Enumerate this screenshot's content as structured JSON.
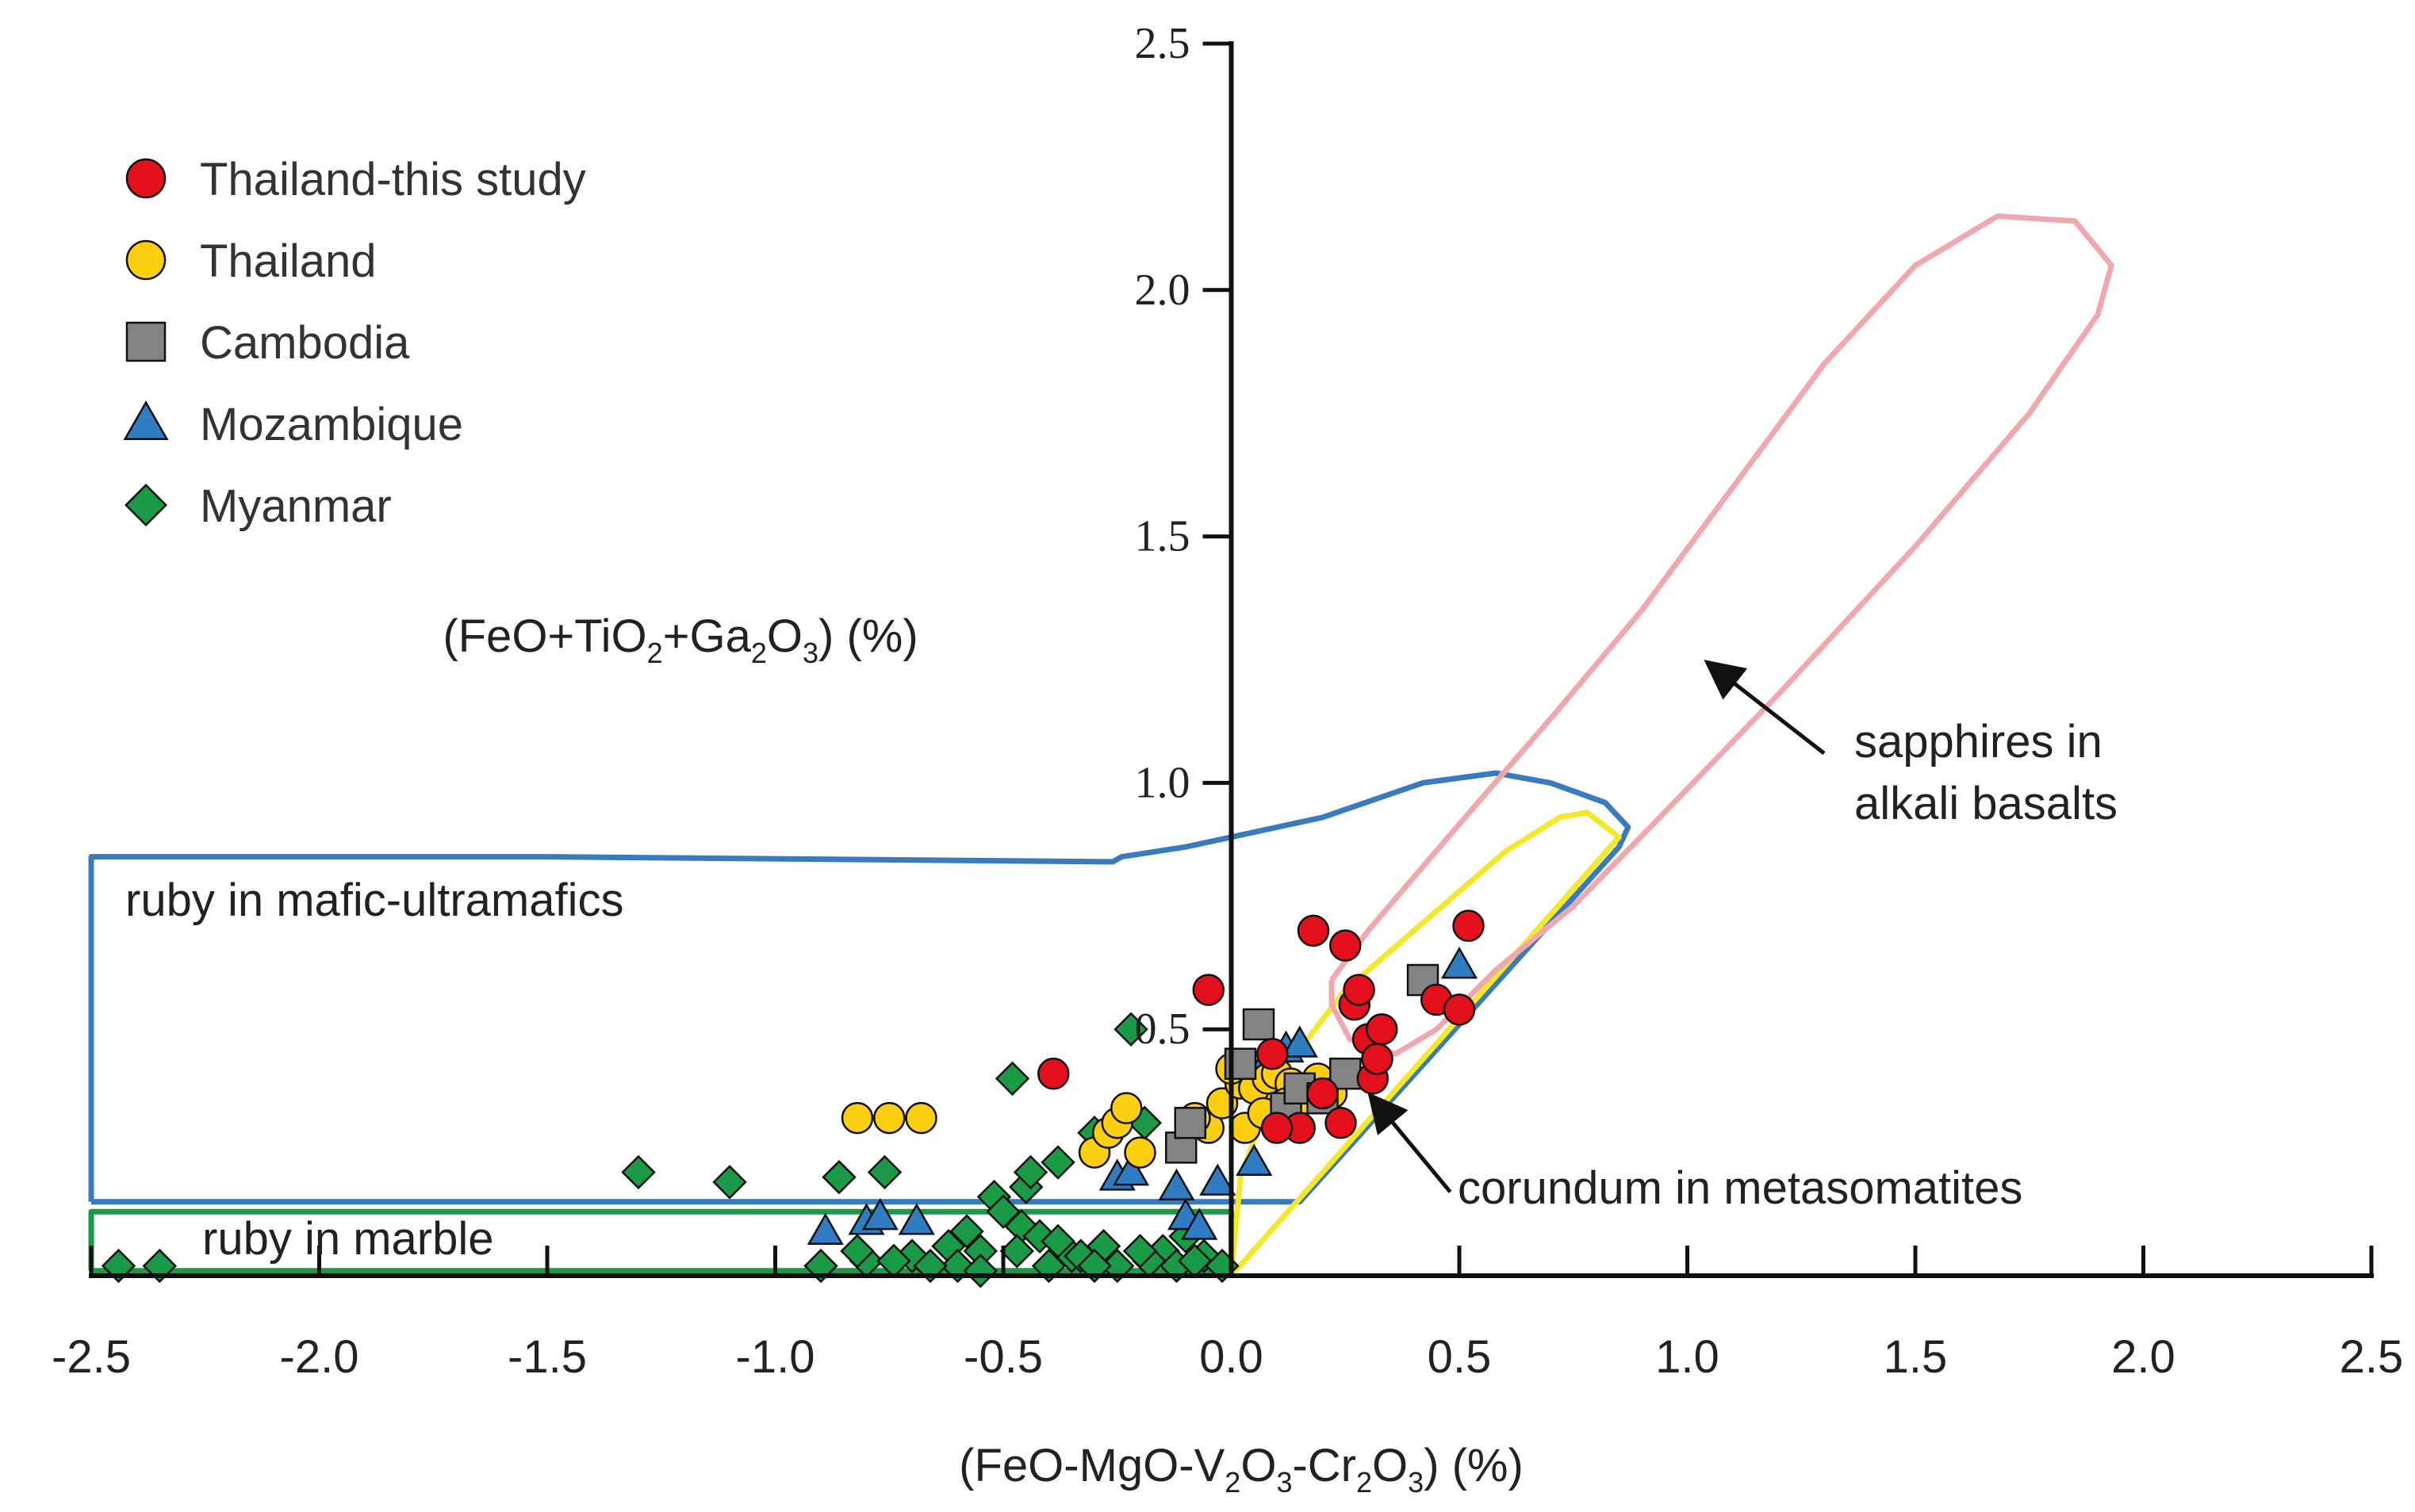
{
  "chart_data": {
    "type": "scatter",
    "title": "",
    "xlabel": {
      "pre": "(FeO-MgO-V",
      "s1": "2",
      "m1": "O",
      "s2": "3",
      "m2": "-Cr",
      "s3": "2",
      "m3": "O",
      "s4": "3",
      "post": ") (%)"
    },
    "ylabel": {
      "pre": "(FeO+TiO",
      "s1": "2",
      "m1": "+Ga",
      "s2": "2",
      "m2": "O",
      "s3": "3",
      "post": ") (%)"
    },
    "xlim": [
      -2.5,
      2.5
    ],
    "ylim": [
      0,
      2.5
    ],
    "xticks": [
      -2.5,
      -2.0,
      -1.5,
      -1.0,
      -0.5,
      0.0,
      0.5,
      1.0,
      1.5,
      2.0,
      2.5
    ],
    "yticks": [
      0.5,
      1.0,
      1.5,
      2.0,
      2.5
    ],
    "xtick_labels": [
      "-2.5",
      "-2.0",
      "-1.5",
      "-1.0",
      "-0.5",
      "0.0",
      "0.5",
      "1.0",
      "1.5",
      "2.0",
      "2.5"
    ],
    "ytick_labels": [
      "0.5",
      "1.0",
      "1.5",
      "2.0",
      "2.5"
    ],
    "legend_position": "top-left",
    "series": [
      {
        "name": "Thailand-this study",
        "marker": "circle",
        "color": "#e3101c",
        "x": [
          -0.39,
          -0.05,
          0.09,
          0.18,
          0.25,
          0.27,
          0.28,
          0.3,
          0.33,
          0.31,
          0.2,
          0.15,
          0.24,
          0.1,
          0.32,
          0.45,
          0.5,
          0.52
        ],
        "y": [
          0.41,
          0.58,
          0.45,
          0.7,
          0.67,
          0.55,
          0.58,
          0.48,
          0.5,
          0.4,
          0.37,
          0.3,
          0.31,
          0.3,
          0.44,
          0.56,
          0.54,
          0.71
        ]
      },
      {
        "name": "Thailand",
        "marker": "circle",
        "color": "#fbcf10",
        "x": [
          -0.82,
          -0.75,
          -0.68,
          -0.3,
          -0.27,
          -0.25,
          -0.23,
          -0.2,
          -0.05,
          -0.02,
          0.02,
          0.05,
          0.08,
          0.1,
          0.13,
          0.16,
          0.19,
          0.22,
          0.03,
          0.07,
          0.12,
          0.0,
          -0.08
        ],
        "y": [
          0.32,
          0.32,
          0.32,
          0.25,
          0.29,
          0.31,
          0.34,
          0.25,
          0.3,
          0.35,
          0.39,
          0.38,
          0.4,
          0.41,
          0.39,
          0.36,
          0.4,
          0.37,
          0.3,
          0.33,
          0.35,
          0.42,
          0.32
        ]
      },
      {
        "name": "Cambodia",
        "marker": "square",
        "color": "#848484",
        "x": [
          -0.11,
          -0.09,
          0.06,
          0.02,
          0.12,
          0.15,
          0.2,
          0.25,
          0.42
        ],
        "y": [
          0.26,
          0.31,
          0.51,
          0.43,
          0.34,
          0.38,
          0.36,
          0.41,
          0.6
        ]
      },
      {
        "name": "Mozambique",
        "marker": "triangle",
        "color": "#2f7cc2",
        "x": [
          -0.89,
          -0.8,
          -0.77,
          -0.69,
          -0.25,
          -0.22,
          -0.12,
          -0.1,
          -0.07,
          -0.03,
          0.05,
          0.08,
          0.12,
          0.15,
          0.5
        ],
        "y": [
          0.09,
          0.11,
          0.12,
          0.11,
          0.2,
          0.21,
          0.18,
          0.12,
          0.1,
          0.19,
          0.23,
          0.44,
          0.46,
          0.47,
          0.63
        ]
      },
      {
        "name": "Myanmar",
        "marker": "diamond",
        "color": "#1a9a46",
        "x": [
          -2.44,
          -2.35,
          -1.3,
          -1.1,
          -0.86,
          -0.76,
          -0.48,
          -0.45,
          -0.44,
          -0.38,
          -0.3,
          -0.22,
          -0.19,
          -0.52,
          -0.5,
          -0.46,
          -0.42,
          -0.55,
          -0.35,
          -0.28,
          -0.15,
          -0.1,
          -0.62,
          -0.7,
          -0.8,
          -0.82,
          -0.6,
          -0.58,
          -0.4,
          -0.33,
          -0.25,
          -0.18,
          -0.12,
          -0.06,
          -0.9,
          -0.66,
          -0.38,
          -0.2,
          -0.08,
          -0.02,
          -0.74,
          -0.55,
          -0.47,
          -0.3
        ],
        "y": [
          0.02,
          0.02,
          0.21,
          0.19,
          0.2,
          0.21,
          0.4,
          0.18,
          0.21,
          0.23,
          0.29,
          0.5,
          0.31,
          0.16,
          0.13,
          0.1,
          0.08,
          0.05,
          0.04,
          0.06,
          0.05,
          0.08,
          0.06,
          0.04,
          0.03,
          0.05,
          0.02,
          0.09,
          0.02,
          0.04,
          0.02,
          0.03,
          0.02,
          0.04,
          0.02,
          0.02,
          0.07,
          0.05,
          0.03,
          0.02,
          0.03,
          0.01,
          0.05,
          0.02
        ]
      }
    ],
    "fields": [
      {
        "name": "ruby in mafic-ultramafics",
        "color": "#3a7bbf",
        "outline": [
          [
            -2.5,
            0.15
          ],
          [
            -2.5,
            0.85
          ],
          [
            -1.5,
            0.85
          ],
          [
            -0.26,
            0.84
          ],
          [
            -0.24,
            0.85
          ],
          [
            -0.1,
            0.87
          ],
          [
            0.2,
            0.93
          ],
          [
            0.42,
            1.0
          ],
          [
            0.58,
            1.02
          ],
          [
            0.7,
            1.0
          ],
          [
            0.82,
            0.96
          ],
          [
            0.87,
            0.91
          ],
          [
            0.85,
            0.87
          ],
          [
            0.15,
            0.15
          ],
          [
            -2.5,
            0.15
          ]
        ]
      },
      {
        "name": "ruby in marble",
        "color": "#1a9a46",
        "outline": [
          [
            -2.5,
            0.01
          ],
          [
            -2.5,
            0.13
          ],
          [
            0.0,
            0.13
          ],
          [
            0.0,
            0.01
          ],
          [
            -2.5,
            0.01
          ]
        ]
      },
      {
        "name": "corundum in metasomatites",
        "color": "#f4e82a",
        "outline": [
          [
            0.0,
            0.0
          ],
          [
            0.02,
            0.2
          ],
          [
            0.1,
            0.4
          ],
          [
            0.25,
            0.58
          ],
          [
            0.45,
            0.74
          ],
          [
            0.6,
            0.86
          ],
          [
            0.72,
            0.93
          ],
          [
            0.78,
            0.94
          ],
          [
            0.85,
            0.89
          ],
          [
            0.0,
            0.0
          ]
        ]
      },
      {
        "name": "sapphires in alkali basalts",
        "color": "#f0a8ae",
        "outline": [
          [
            0.22,
            0.6
          ],
          [
            0.3,
            0.7
          ],
          [
            0.42,
            0.83
          ],
          [
            0.55,
            0.97
          ],
          [
            0.7,
            1.13
          ],
          [
            0.9,
            1.35
          ],
          [
            1.1,
            1.6
          ],
          [
            1.3,
            1.85
          ],
          [
            1.5,
            2.05
          ],
          [
            1.68,
            2.15
          ],
          [
            1.85,
            2.14
          ],
          [
            1.93,
            2.05
          ],
          [
            1.9,
            1.95
          ],
          [
            1.75,
            1.75
          ],
          [
            1.5,
            1.48
          ],
          [
            1.2,
            1.18
          ],
          [
            0.95,
            0.94
          ],
          [
            0.75,
            0.75
          ],
          [
            0.58,
            0.62
          ],
          [
            0.45,
            0.5
          ],
          [
            0.36,
            0.45
          ],
          [
            0.26,
            0.48
          ],
          [
            0.22,
            0.55
          ],
          [
            0.22,
            0.6
          ]
        ]
      }
    ],
    "annotations": [
      {
        "id": "mafic",
        "text": "ruby in mafic-ultramafics",
        "type": "label"
      },
      {
        "id": "marble",
        "text": "ruby in marble",
        "type": "label"
      },
      {
        "id": "meta",
        "text": "corundum in metasomatites",
        "type": "arrow",
        "target": [
          0.31,
          0.36
        ],
        "from": [
          0.48,
          0.17
        ]
      },
      {
        "id": "basalt",
        "lines": [
          "sapphires in",
          "alkali basalts"
        ],
        "type": "arrow",
        "target": [
          1.05,
          1.24
        ],
        "from": [
          1.3,
          1.06
        ]
      }
    ]
  }
}
